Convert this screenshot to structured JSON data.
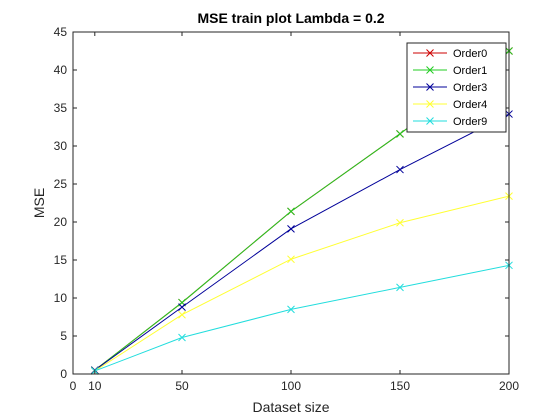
{
  "chart_data": {
    "type": "line",
    "title": "MSE train plot Lambda = 0.2",
    "xlabel": "Dataset size",
    "ylabel": "MSE",
    "xlim": [
      0,
      200
    ],
    "ylim": [
      0,
      45
    ],
    "xticks": [
      0,
      10,
      50,
      100,
      150,
      200
    ],
    "yticks": [
      0,
      5,
      10,
      15,
      20,
      25,
      30,
      35,
      40,
      45
    ],
    "x": [
      10,
      50,
      100,
      150,
      200
    ],
    "legend_position": "top-right",
    "grid": false,
    "series": [
      {
        "name": "Order0",
        "color": "#cc0000",
        "marker": "x",
        "values": [
          0.5,
          9.4,
          21.4,
          31.6,
          42.5
        ]
      },
      {
        "name": "Order1",
        "color": "#22cc22",
        "marker": "x",
        "values": [
          0.5,
          9.4,
          21.4,
          31.6,
          42.5
        ]
      },
      {
        "name": "Order3",
        "color": "#000099",
        "marker": "x",
        "values": [
          0.5,
          8.8,
          19.1,
          26.9,
          34.2
        ]
      },
      {
        "name": "Order4",
        "color": "#ffff33",
        "marker": "x",
        "values": [
          0.4,
          7.8,
          15.1,
          19.9,
          23.4
        ]
      },
      {
        "name": "Order9",
        "color": "#22dddd",
        "marker": "x",
        "values": [
          0.4,
          4.8,
          8.5,
          11.4,
          14.3
        ]
      }
    ]
  }
}
